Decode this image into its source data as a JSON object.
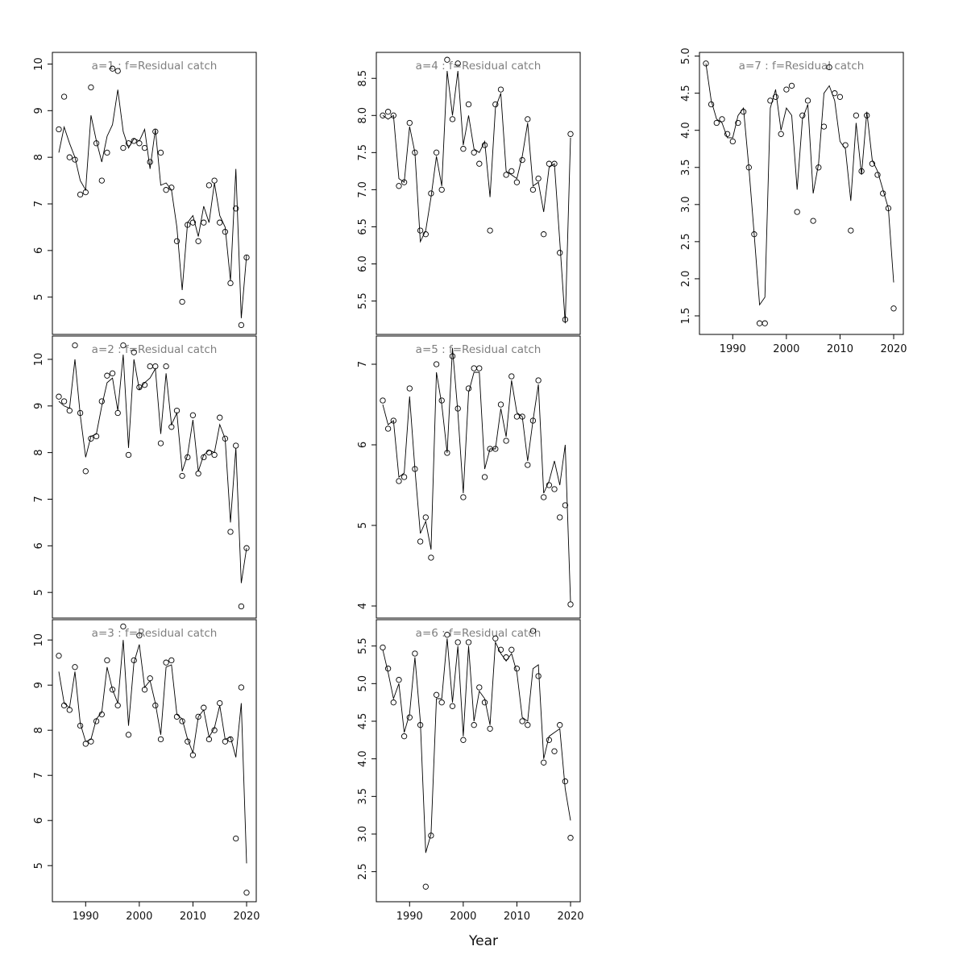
{
  "xlabel": "Year",
  "colors": {
    "line": "#000000",
    "point": "#000000",
    "title": "#7f7f7f",
    "box": "#000000"
  },
  "x_axis": {
    "ticks": [
      1990,
      2000,
      2010,
      2020
    ],
    "labels": [
      "1990",
      "2000",
      "2010",
      "2020"
    ],
    "xlim": [
      1983.8,
      2021.8
    ]
  },
  "years_start": 1985,
  "chart_data": [
    {
      "type": "line",
      "panel": "a=1",
      "title": "a=1  :  f=Residual catch",
      "ylim": [
        4.2,
        10.25
      ],
      "yticks": [
        5,
        6,
        7,
        8,
        9,
        10
      ],
      "ytick_labels": [
        "5",
        "6",
        "7",
        "8",
        "9",
        "10"
      ],
      "show_x_labels": false,
      "series": [
        {
          "name": "observed",
          "values": [
            8.6,
            9.3,
            8.0,
            7.95,
            7.2,
            7.25,
            9.5,
            8.3,
            7.5,
            8.1,
            9.9,
            9.85,
            8.2,
            8.3,
            8.35,
            8.3,
            8.2,
            7.9,
            8.55,
            8.1,
            7.3,
            7.35,
            6.2,
            4.9,
            6.55,
            6.6,
            6.2,
            6.6,
            7.4,
            7.5,
            6.6,
            6.4,
            5.3,
            6.9,
            4.4,
            5.85
          ]
        },
        {
          "name": "fitted",
          "values": [
            8.1,
            8.65,
            8.3,
            8.0,
            7.5,
            7.3,
            8.9,
            8.35,
            7.9,
            8.45,
            8.7,
            9.45,
            8.55,
            8.2,
            8.4,
            8.35,
            8.6,
            7.75,
            8.6,
            7.4,
            7.45,
            7.3,
            6.5,
            5.15,
            6.6,
            6.75,
            6.3,
            6.95,
            6.6,
            7.45,
            6.75,
            6.5,
            5.35,
            7.75,
            4.55,
            5.9
          ]
        }
      ]
    },
    {
      "type": "line",
      "panel": "a=2",
      "title": "a=2  :  f=Residual catch",
      "ylim": [
        4.45,
        10.5
      ],
      "yticks": [
        5,
        6,
        7,
        8,
        9,
        10
      ],
      "ytick_labels": [
        "5",
        "6",
        "7",
        "8",
        "9",
        "10"
      ],
      "show_x_labels": false,
      "series": [
        {
          "name": "observed",
          "values": [
            9.2,
            9.1,
            8.9,
            10.3,
            8.85,
            7.6,
            8.3,
            8.35,
            9.1,
            9.65,
            9.7,
            8.85,
            10.3,
            7.95,
            10.15,
            9.4,
            9.45,
            9.85,
            9.85,
            8.2,
            9.85,
            8.55,
            8.9,
            7.5,
            7.9,
            8.8,
            7.55,
            7.9,
            8.0,
            7.95,
            8.75,
            8.3,
            6.3,
            8.15,
            4.7,
            5.95
          ]
        },
        {
          "name": "fitted",
          "values": [
            9.1,
            9.0,
            8.95,
            10.0,
            8.8,
            7.9,
            8.35,
            8.4,
            9.0,
            9.5,
            9.6,
            8.9,
            10.1,
            8.1,
            10.0,
            9.35,
            9.5,
            9.6,
            9.8,
            8.4,
            9.7,
            8.6,
            8.85,
            7.6,
            7.95,
            8.7,
            7.6,
            7.95,
            8.05,
            8.0,
            8.6,
            8.3,
            6.5,
            8.1,
            5.2,
            5.95
          ]
        }
      ]
    },
    {
      "type": "line",
      "panel": "a=3",
      "title": "a=3  :  f=Residual catch",
      "ylim": [
        4.2,
        10.45
      ],
      "yticks": [
        5,
        6,
        7,
        8,
        9,
        10
      ],
      "ytick_labels": [
        "5",
        "6",
        "7",
        "8",
        "9",
        "10"
      ],
      "show_x_labels": true,
      "series": [
        {
          "name": "observed",
          "values": [
            9.65,
            8.55,
            8.45,
            9.4,
            8.1,
            7.7,
            7.75,
            8.2,
            8.35,
            9.55,
            8.9,
            8.55,
            10.3,
            7.9,
            9.55,
            10.1,
            8.9,
            9.15,
            8.55,
            7.8,
            9.5,
            9.55,
            8.3,
            8.2,
            7.75,
            7.45,
            8.3,
            8.5,
            7.8,
            8.0,
            8.6,
            7.75,
            7.8,
            5.6,
            8.95,
            4.4
          ]
        },
        {
          "name": "fitted",
          "values": [
            9.3,
            8.6,
            8.5,
            9.3,
            8.15,
            7.75,
            7.8,
            8.25,
            8.4,
            9.4,
            8.9,
            8.6,
            10.0,
            8.1,
            9.5,
            9.9,
            8.95,
            9.1,
            8.6,
            7.9,
            9.4,
            9.45,
            8.35,
            8.25,
            7.8,
            7.5,
            8.3,
            8.45,
            7.85,
            8.05,
            8.55,
            7.8,
            7.85,
            7.4,
            8.6,
            5.05
          ]
        }
      ]
    },
    {
      "type": "line",
      "panel": "a=4",
      "title": "a=4  :  f=Residual catch",
      "ylim": [
        5.05,
        8.85
      ],
      "yticks": [
        5.5,
        6.0,
        6.5,
        7.0,
        7.5,
        8.0,
        8.5
      ],
      "ytick_labels": [
        "5.5",
        "6.0",
        "6.5",
        "7.0",
        "7.5",
        "8.0",
        "8.5"
      ],
      "show_x_labels": false,
      "series": [
        {
          "name": "observed",
          "values": [
            8.0,
            8.05,
            8.0,
            7.05,
            7.1,
            7.9,
            7.5,
            6.45,
            6.4,
            6.95,
            7.5,
            7.0,
            8.75,
            7.95,
            8.7,
            7.55,
            8.15,
            7.5,
            7.35,
            7.6,
            6.45,
            8.15,
            8.35,
            7.2,
            7.25,
            7.1,
            7.4,
            7.95,
            7.0,
            7.15,
            6.4,
            7.35,
            7.35,
            6.15,
            5.25,
            7.75
          ]
        },
        {
          "name": "fitted",
          "values": [
            8.0,
            7.95,
            8.0,
            7.15,
            7.1,
            7.85,
            7.5,
            6.3,
            6.45,
            6.9,
            7.45,
            7.05,
            8.6,
            8.0,
            8.6,
            7.6,
            8.0,
            7.55,
            7.5,
            7.65,
            6.9,
            8.1,
            8.3,
            7.25,
            7.2,
            7.15,
            7.45,
            7.9,
            7.05,
            7.1,
            6.7,
            7.3,
            7.35,
            6.3,
            5.2,
            7.7
          ]
        }
      ]
    },
    {
      "type": "line",
      "panel": "a=5",
      "title": "a=5  :  f=Residual catch",
      "ylim": [
        3.85,
        7.35
      ],
      "yticks": [
        4,
        5,
        6,
        7
      ],
      "ytick_labels": [
        "4",
        "5",
        "6",
        "7"
      ],
      "show_x_labels": false,
      "series": [
        {
          "name": "observed",
          "values": [
            6.55,
            6.2,
            6.3,
            5.55,
            5.6,
            6.7,
            5.7,
            4.8,
            5.1,
            4.6,
            7.0,
            6.55,
            5.9,
            7.1,
            6.45,
            5.35,
            6.7,
            6.95,
            6.95,
            5.6,
            5.95,
            5.95,
            6.5,
            6.05,
            6.85,
            6.35,
            6.35,
            5.75,
            6.3,
            6.8,
            5.35,
            5.5,
            5.45,
            5.1,
            5.25,
            4.02
          ]
        },
        {
          "name": "fitted",
          "values": [
            6.5,
            6.25,
            6.3,
            5.6,
            5.65,
            6.6,
            5.7,
            4.9,
            5.05,
            4.7,
            6.9,
            6.5,
            5.9,
            7.2,
            6.4,
            5.4,
            6.65,
            6.9,
            6.9,
            5.7,
            5.95,
            5.95,
            6.45,
            6.1,
            6.8,
            6.4,
            6.35,
            5.8,
            6.3,
            6.75,
            5.4,
            5.55,
            5.8,
            5.5,
            6.0,
            4.05
          ]
        }
      ]
    },
    {
      "type": "line",
      "panel": "a=6",
      "title": "a=6  :  f=Residual catch",
      "ylim": [
        2.1,
        5.85
      ],
      "yticks": [
        2.5,
        3.0,
        3.5,
        4.0,
        4.5,
        5.0,
        5.5
      ],
      "ytick_labels": [
        "2.5",
        "3.0",
        "3.5",
        "4.0",
        "4.5",
        "5.0",
        "5.5"
      ],
      "show_x_labels": true,
      "series": [
        {
          "name": "observed",
          "values": [
            5.48,
            5.2,
            4.75,
            5.05,
            4.3,
            4.55,
            5.4,
            4.45,
            2.3,
            2.98,
            4.85,
            4.75,
            5.65,
            4.7,
            5.55,
            4.25,
            5.55,
            4.45,
            4.95,
            4.75,
            4.4,
            5.6,
            5.45,
            5.35,
            5.45,
            5.2,
            4.5,
            4.45,
            5.7,
            5.1,
            3.95,
            4.25,
            4.1,
            4.45,
            3.7,
            2.95
          ]
        },
        {
          "name": "fitted",
          "values": [
            5.45,
            5.15,
            4.8,
            5.0,
            4.35,
            4.6,
            5.35,
            4.5,
            2.75,
            3.0,
            4.8,
            4.8,
            5.6,
            4.75,
            5.5,
            4.3,
            5.5,
            4.5,
            4.9,
            4.8,
            4.45,
            5.55,
            5.4,
            5.3,
            5.4,
            5.15,
            4.55,
            4.5,
            5.2,
            5.25,
            4.0,
            4.3,
            4.35,
            4.4,
            3.6,
            3.18
          ]
        }
      ]
    },
    {
      "type": "line",
      "panel": "a=7",
      "title": "a=7  :  f=Residual catch",
      "ylim": [
        1.25,
        5.05
      ],
      "yticks": [
        1.5,
        2.0,
        2.5,
        3.0,
        3.5,
        4.0,
        4.5,
        5.0
      ],
      "ytick_labels": [
        "1.5",
        "2.0",
        "2.5",
        "3.0",
        "3.5",
        "4.0",
        "4.5",
        "5.0"
      ],
      "show_x_labels": true,
      "series": [
        {
          "name": "observed",
          "values": [
            4.9,
            4.35,
            4.1,
            4.15,
            3.95,
            3.85,
            4.1,
            4.25,
            3.5,
            2.6,
            1.4,
            1.4,
            4.4,
            4.45,
            3.95,
            4.55,
            4.6,
            2.9,
            4.2,
            4.4,
            2.78,
            3.5,
            4.05,
            4.85,
            4.5,
            4.45,
            3.8,
            2.65,
            4.2,
            3.45,
            4.2,
            3.55,
            3.4,
            3.15,
            2.95,
            1.6
          ]
        },
        {
          "name": "fitted",
          "values": [
            4.9,
            4.4,
            4.15,
            4.1,
            3.9,
            3.9,
            4.2,
            4.3,
            3.5,
            2.6,
            1.65,
            1.75,
            4.3,
            4.55,
            4.0,
            4.3,
            4.2,
            3.2,
            4.15,
            4.35,
            3.15,
            3.55,
            4.5,
            4.6,
            4.4,
            3.85,
            3.75,
            3.05,
            4.1,
            3.4,
            4.25,
            3.6,
            3.45,
            3.2,
            2.95,
            1.95
          ]
        }
      ]
    }
  ]
}
